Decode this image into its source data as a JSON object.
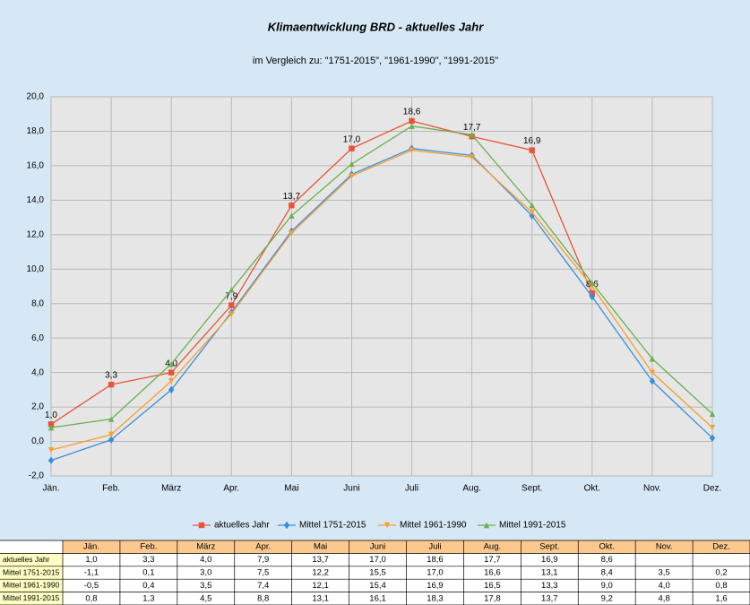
{
  "chart_data": {
    "type": "line",
    "title": "Klimaentwicklung BRD - aktuelles Jahr",
    "subtitle": "im Vergleich zu: \"1751-2015\", \"1961-1990\", \"1991-2015\"",
    "categories": [
      "Jän.",
      "Feb.",
      "März",
      "Apr.",
      "Mai",
      "Juni",
      "Juli",
      "Aug.",
      "Sept.",
      "Okt.",
      "Nov.",
      "Dez."
    ],
    "series": [
      {
        "name": "aktuelles Jahr",
        "color": "#e8543a",
        "marker": "square",
        "data_labels": true,
        "values": [
          1.0,
          3.3,
          4.0,
          7.9,
          13.7,
          17.0,
          18.6,
          17.7,
          16.9,
          8.6,
          null,
          null
        ],
        "value_labels": [
          "1,0",
          "3,3",
          "4,0",
          "7,9",
          "13,7",
          "17,0",
          "18,6",
          "17,7",
          "16,9",
          "8,6",
          null,
          null
        ]
      },
      {
        "name": "Mittel 1751-2015",
        "color": "#3a8fd8",
        "marker": "diamond",
        "values": [
          -1.1,
          0.1,
          3.0,
          7.5,
          12.2,
          15.5,
          17.0,
          16.6,
          13.1,
          8.4,
          3.5,
          0.2
        ],
        "value_labels": [
          "-1,1",
          "0,1",
          "3,0",
          "7,5",
          "12,2",
          "15,5",
          "17,0",
          "16,6",
          "13,1",
          "8,4",
          "3,5",
          "0,2"
        ]
      },
      {
        "name": "Mittel 1961-1990",
        "color": "#f5a030",
        "marker": "triangle-down",
        "values": [
          -0.5,
          0.4,
          3.5,
          7.4,
          12.1,
          15.4,
          16.9,
          16.5,
          13.3,
          9.0,
          4.0,
          0.8
        ],
        "value_labels": [
          "-0,5",
          "0,4",
          "3,5",
          "7,4",
          "12,1",
          "15,4",
          "16,9",
          "16,5",
          "13,3",
          "9,0",
          "4,0",
          "0,8"
        ]
      },
      {
        "name": "Mittel 1991-2015",
        "color": "#6ab04c",
        "marker": "triangle-up",
        "values": [
          0.8,
          1.3,
          4.5,
          8.8,
          13.1,
          16.1,
          18.3,
          17.8,
          13.7,
          9.2,
          4.8,
          1.6
        ],
        "value_labels": [
          "0,8",
          "1,3",
          "4,5",
          "8,8",
          "13,1",
          "16,1",
          "18,3",
          "17,8",
          "13,7",
          "9,2",
          "4,8",
          "1,6"
        ]
      }
    ],
    "ylim": [
      -2,
      20
    ],
    "yticks": [
      {
        "value": -2,
        "label": "-2,0"
      },
      {
        "value": 0,
        "label": "0,0"
      },
      {
        "value": 2,
        "label": "2,0"
      },
      {
        "value": 4,
        "label": "4,0"
      },
      {
        "value": 6,
        "label": "6,0"
      },
      {
        "value": 8,
        "label": "8,0"
      },
      {
        "value": 10,
        "label": "10,0"
      },
      {
        "value": 12,
        "label": "12,0"
      },
      {
        "value": 14,
        "label": "14,0"
      },
      {
        "value": 16,
        "label": "16,0"
      },
      {
        "value": 18,
        "label": "18,0"
      },
      {
        "value": 20,
        "label": "20,0"
      }
    ],
    "grid": true,
    "legend": "bottom"
  }
}
